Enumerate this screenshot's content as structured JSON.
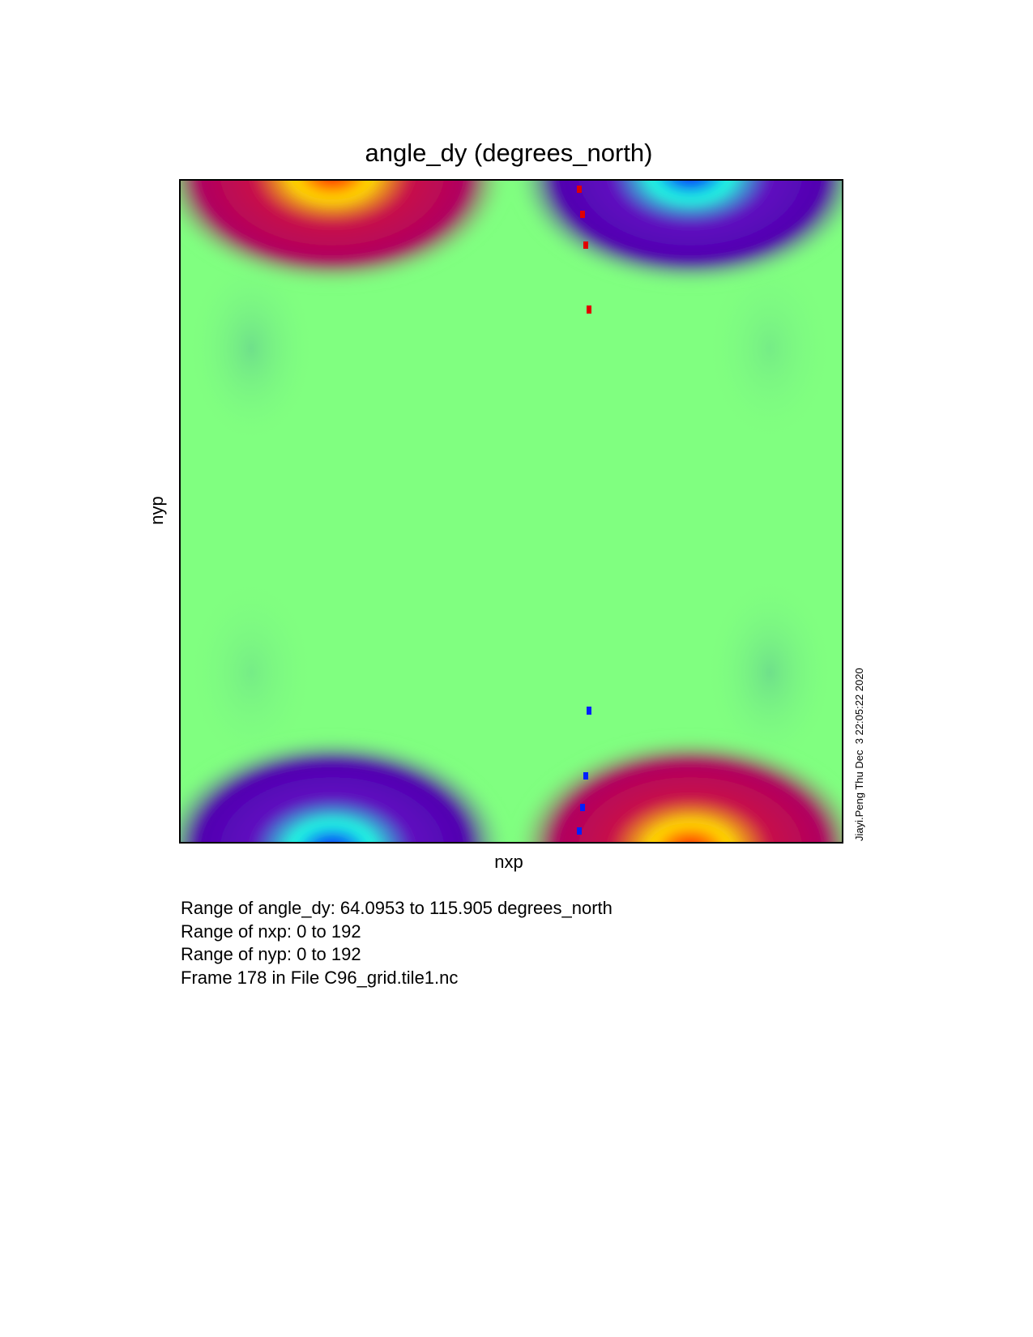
{
  "plot": {
    "title": "angle_dy (degrees_north)",
    "x_label": "nxp",
    "y_label": "nyp",
    "stamp": "Jiayi.Peng Thu Dec  3 22:05:22 2020"
  },
  "info": {
    "lines": [
      "Range of angle_dy: 64.0953 to 115.905 degrees_north",
      "Range of nxp: 0 to 192",
      "Range of nyp: 0 to 192",
      "Frame 178 in File C96_grid.tile1.nc"
    ]
  }
}
